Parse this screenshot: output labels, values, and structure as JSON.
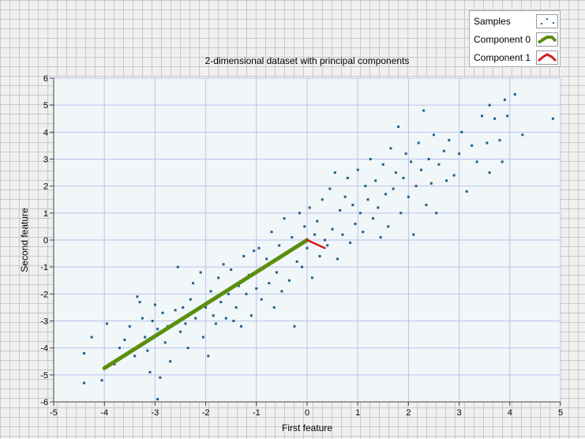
{
  "chart_data": {
    "type": "scatter",
    "title": "2-dimensional dataset with principal components",
    "xlabel": "First feature",
    "ylabel": "Second feature",
    "xlim": [
      -5,
      5
    ],
    "ylim": [
      -6,
      6
    ],
    "x_ticks": [
      -5,
      -4,
      -3,
      -2,
      -1,
      0,
      1,
      2,
      3,
      4,
      5
    ],
    "y_ticks": [
      -6,
      -5,
      -4,
      -3,
      -2,
      -1,
      0,
      1,
      2,
      3,
      4,
      5,
      6
    ],
    "grid": true,
    "legend_position": "top-right",
    "series": [
      {
        "name": "Samples",
        "kind": "points",
        "color": "#1f5f8b",
        "points": [
          [
            -4.4,
            -4.2
          ],
          [
            -4.4,
            -5.3
          ],
          [
            -4.25,
            -3.6
          ],
          [
            -4.05,
            -5.2
          ],
          [
            -3.95,
            -3.1
          ],
          [
            -3.8,
            -4.6
          ],
          [
            -3.7,
            -4.0
          ],
          [
            -3.6,
            -3.7
          ],
          [
            -3.5,
            -3.2
          ],
          [
            -3.4,
            -4.3
          ],
          [
            -3.35,
            -2.1
          ],
          [
            -3.3,
            -2.3
          ],
          [
            -3.25,
            -2.9
          ],
          [
            -3.2,
            -3.6
          ],
          [
            -3.15,
            -4.1
          ],
          [
            -3.1,
            -4.9
          ],
          [
            -3.05,
            -3.0
          ],
          [
            -3.0,
            -2.4
          ],
          [
            -2.95,
            -3.3
          ],
          [
            -2.9,
            -5.1
          ],
          [
            -2.85,
            -2.7
          ],
          [
            -2.8,
            -3.8
          ],
          [
            -2.75,
            -3.2
          ],
          [
            -2.7,
            -4.5
          ],
          [
            -2.95,
            -5.9
          ],
          [
            -2.6,
            -2.6
          ],
          [
            -2.55,
            -1.0
          ],
          [
            -2.5,
            -3.4
          ],
          [
            -2.45,
            -2.5
          ],
          [
            -2.4,
            -3.1
          ],
          [
            -2.35,
            -4.0
          ],
          [
            -2.3,
            -2.2
          ],
          [
            -2.25,
            -1.6
          ],
          [
            -2.2,
            -2.9
          ],
          [
            -2.1,
            -1.2
          ],
          [
            -2.05,
            -3.6
          ],
          [
            -2.0,
            -2.5
          ],
          [
            -1.95,
            -4.3
          ],
          [
            -1.9,
            -1.9
          ],
          [
            -1.85,
            -2.8
          ],
          [
            -1.8,
            -3.1
          ],
          [
            -1.75,
            -1.4
          ],
          [
            -1.7,
            -2.3
          ],
          [
            -1.65,
            -0.9
          ],
          [
            -1.6,
            -2.9
          ],
          [
            -1.55,
            -2.0
          ],
          [
            -1.5,
            -1.1
          ],
          [
            -1.45,
            -3.0
          ],
          [
            -1.4,
            -2.5
          ],
          [
            -1.35,
            -1.7
          ],
          [
            -1.3,
            -3.2
          ],
          [
            -1.25,
            -0.6
          ],
          [
            -1.2,
            -2.0
          ],
          [
            -1.15,
            -1.3
          ],
          [
            -1.1,
            -2.8
          ],
          [
            -1.05,
            -0.4
          ],
          [
            -1.0,
            -1.8
          ],
          [
            -0.95,
            -0.3
          ],
          [
            -0.9,
            -2.2
          ],
          [
            -0.85,
            -1.0
          ],
          [
            -0.8,
            -0.7
          ],
          [
            -0.75,
            -1.6
          ],
          [
            -0.7,
            0.3
          ],
          [
            -0.65,
            -2.5
          ],
          [
            -0.6,
            -1.2
          ],
          [
            -0.55,
            -0.2
          ],
          [
            -0.5,
            -1.9
          ],
          [
            -0.45,
            0.8
          ],
          [
            -0.4,
            -0.5
          ],
          [
            -0.35,
            -1.5
          ],
          [
            -0.3,
            0.1
          ],
          [
            -0.25,
            -3.2
          ],
          [
            -0.2,
            -0.8
          ],
          [
            -0.15,
            1.0
          ],
          [
            -0.1,
            -1.0
          ],
          [
            -0.05,
            0.5
          ],
          [
            0.0,
            -0.3
          ],
          [
            0.05,
            1.2
          ],
          [
            0.1,
            -1.4
          ],
          [
            0.15,
            0.2
          ],
          [
            0.2,
            0.7
          ],
          [
            0.25,
            -0.6
          ],
          [
            0.3,
            1.5
          ],
          [
            0.35,
            0.0
          ],
          [
            0.4,
            -0.2
          ],
          [
            0.45,
            1.9
          ],
          [
            0.5,
            0.4
          ],
          [
            0.55,
            2.5
          ],
          [
            0.6,
            -0.7
          ],
          [
            0.65,
            1.1
          ],
          [
            0.7,
            0.2
          ],
          [
            0.75,
            1.6
          ],
          [
            0.8,
            2.3
          ],
          [
            0.85,
            -0.1
          ],
          [
            0.9,
            1.3
          ],
          [
            0.95,
            0.6
          ],
          [
            1.0,
            2.6
          ],
          [
            1.05,
            1.0
          ],
          [
            1.1,
            0.3
          ],
          [
            1.15,
            2.0
          ],
          [
            1.2,
            1.5
          ],
          [
            1.25,
            3.0
          ],
          [
            1.3,
            0.8
          ],
          [
            1.35,
            2.2
          ],
          [
            1.4,
            1.2
          ],
          [
            1.45,
            0.1
          ],
          [
            1.5,
            2.8
          ],
          [
            1.55,
            1.7
          ],
          [
            1.6,
            0.5
          ],
          [
            1.65,
            3.4
          ],
          [
            1.7,
            1.9
          ],
          [
            1.75,
            2.5
          ],
          [
            1.8,
            4.2
          ],
          [
            1.85,
            1.0
          ],
          [
            1.9,
            2.3
          ],
          [
            1.95,
            3.2
          ],
          [
            2.0,
            1.6
          ],
          [
            2.05,
            2.9
          ],
          [
            2.1,
            0.2
          ],
          [
            2.15,
            2.0
          ],
          [
            2.2,
            3.6
          ],
          [
            2.25,
            2.6
          ],
          [
            2.3,
            4.8
          ],
          [
            2.35,
            1.3
          ],
          [
            2.4,
            3.0
          ],
          [
            2.45,
            2.1
          ],
          [
            2.5,
            3.9
          ],
          [
            2.55,
            1.0
          ],
          [
            2.6,
            2.8
          ],
          [
            2.7,
            3.3
          ],
          [
            2.75,
            2.2
          ],
          [
            2.8,
            3.7
          ],
          [
            2.9,
            2.4
          ],
          [
            3.0,
            3.2
          ],
          [
            3.05,
            4.0
          ],
          [
            3.15,
            1.8
          ],
          [
            3.25,
            3.5
          ],
          [
            3.35,
            2.9
          ],
          [
            3.45,
            4.6
          ],
          [
            3.55,
            3.6
          ],
          [
            3.6,
            2.5
          ],
          [
            3.7,
            4.5
          ],
          [
            3.8,
            3.7
          ],
          [
            3.85,
            2.9
          ],
          [
            3.95,
            4.6
          ],
          [
            3.6,
            5.0
          ],
          [
            4.1,
            5.4
          ],
          [
            4.25,
            3.9
          ],
          [
            3.9,
            5.2
          ],
          [
            4.85,
            4.5
          ]
        ]
      },
      {
        "name": "Component 0",
        "kind": "line",
        "color": "#5a8f0e",
        "x": [
          0.0,
          -4.0
        ],
        "y": [
          0.0,
          -4.75
        ]
      },
      {
        "name": "Component 1",
        "kind": "line",
        "color": "#d11e1e",
        "x": [
          0.0,
          0.35
        ],
        "y": [
          0.0,
          -0.3
        ]
      }
    ]
  },
  "legend": {
    "items": [
      "Samples",
      "Component 0",
      "Component 1"
    ]
  }
}
